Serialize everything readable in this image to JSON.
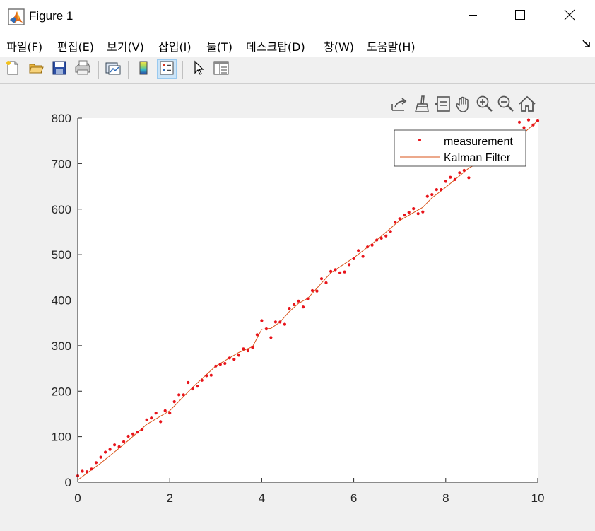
{
  "window": {
    "title": "Figure 1",
    "controls": [
      "minimize-icon",
      "maximize-icon",
      "close-icon"
    ]
  },
  "menu": [
    "파일(F)",
    "편집(E)",
    "보기(V)",
    "삽입(I)",
    "툴(T)",
    "데스크탑(D)",
    "창(W)",
    "도움말(H)"
  ],
  "toolbar": [
    "new-figure-icon",
    "open-file-icon",
    "save-icon",
    "print-icon",
    "link-plot-icon",
    "colorbar-icon",
    "legend-icon",
    "pointer-icon",
    "property-inspector-icon"
  ],
  "axes_toolbar": [
    "export-icon",
    "brush-icon",
    "data-tips-icon",
    "pan-icon",
    "zoom-in-icon",
    "zoom-out-icon",
    "home-icon"
  ],
  "colors": {
    "measurement": "#e8141b",
    "kalman": "#d95319",
    "axes_bg": "#ffffff",
    "figure_bg": "#f0f0f0"
  },
  "chart_data": {
    "type": "line",
    "xlim": [
      0,
      10
    ],
    "ylim": [
      0,
      800
    ],
    "xticks": [
      0,
      2,
      4,
      6,
      8,
      10
    ],
    "yticks": [
      0,
      100,
      200,
      300,
      400,
      500,
      600,
      700,
      800
    ],
    "grid": false,
    "legend_position": "top-right",
    "series": [
      {
        "name": "measurement",
        "style": "points",
        "x": [
          0.0,
          0.1,
          0.2,
          0.3,
          0.4,
          0.5,
          0.6,
          0.7,
          0.8,
          0.9,
          1.0,
          1.1,
          1.2,
          1.3,
          1.4,
          1.5,
          1.6,
          1.7,
          1.8,
          1.9,
          2.0,
          2.1,
          2.2,
          2.3,
          2.4,
          2.5,
          2.6,
          2.7,
          2.8,
          2.9,
          3.0,
          3.1,
          3.2,
          3.3,
          3.4,
          3.5,
          3.6,
          3.7,
          3.8,
          3.9,
          4.0,
          4.1,
          4.2,
          4.3,
          4.4,
          4.5,
          4.6,
          4.7,
          4.8,
          4.9,
          5.0,
          5.1,
          5.2,
          5.3,
          5.4,
          5.5,
          5.6,
          5.7,
          5.8,
          5.9,
          6.0,
          6.1,
          6.2,
          6.3,
          6.4,
          6.5,
          6.6,
          6.7,
          6.8,
          6.9,
          7.0,
          7.1,
          7.2,
          7.3,
          7.4,
          7.5,
          7.6,
          7.7,
          7.8,
          7.9,
          8.0,
          8.1,
          8.2,
          8.3,
          8.4,
          8.5,
          8.6,
          8.7,
          8.8,
          8.9,
          9.0,
          9.1,
          9.2,
          9.3,
          9.4,
          9.5,
          9.6,
          9.7,
          9.8,
          9.9,
          10.0
        ],
        "y": [
          14,
          24,
          23,
          29,
          43,
          55,
          66,
          72,
          82,
          78,
          89,
          101,
          106,
          110,
          116,
          137,
          141,
          152,
          133,
          157,
          152,
          177,
          192,
          192,
          219,
          205,
          211,
          224,
          234,
          235,
          255,
          259,
          261,
          273,
          270,
          279,
          293,
          289,
          296,
          324,
          355,
          337,
          318,
          352,
          352,
          347,
          382,
          390,
          398,
          385,
          403,
          421,
          420,
          447,
          438,
          463,
          467,
          460,
          462,
          478,
          491,
          509,
          496,
          517,
          521,
          532,
          536,
          541,
          551,
          571,
          579,
          587,
          593,
          601,
          590,
          594,
          628,
          632,
          643,
          643,
          661,
          670,
          665,
          680,
          685,
          669,
          705,
          705,
          706,
          715,
          720,
          723,
          727,
          737,
          751,
          754,
          791,
          779,
          796,
          785,
          794
        ]
      },
      {
        "name": "Kalman Filter",
        "style": "line",
        "x": [
          0.0,
          0.5,
          1.0,
          1.5,
          2.0,
          2.5,
          3.0,
          3.5,
          3.8,
          4.0,
          4.2,
          4.4,
          4.6,
          4.8,
          5.0,
          5.5,
          6.0,
          6.5,
          7.0,
          7.5,
          7.7,
          8.0,
          8.5,
          9.0,
          9.5,
          10.0
        ],
        "y": [
          5,
          42,
          83,
          127,
          157,
          209,
          255,
          285,
          298,
          336,
          338,
          352,
          375,
          393,
          404,
          460,
          493,
          532,
          575,
          604,
          625,
          648,
          690,
          718,
          750,
          794
        ]
      }
    ]
  }
}
